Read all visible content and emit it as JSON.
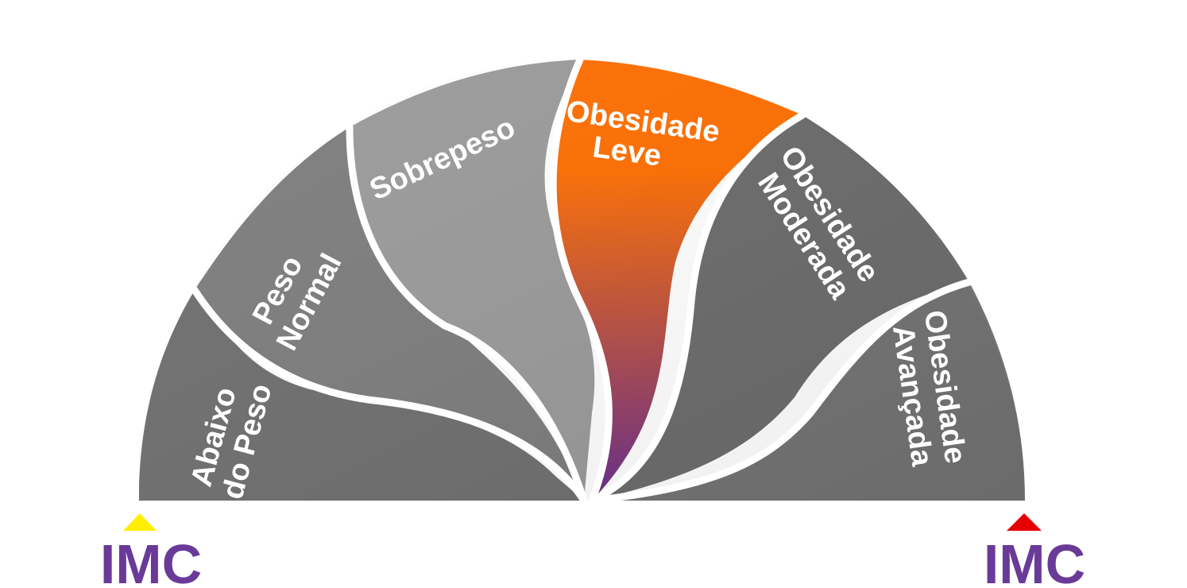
{
  "segments": [
    {
      "id": "abaixo",
      "lines": [
        "Abaixo",
        "do Peso"
      ],
      "color": "#6f6f6f",
      "highlight": false
    },
    {
      "id": "normal",
      "lines": [
        "Peso",
        "Normal"
      ],
      "color": "#7d7d7d",
      "highlight": false
    },
    {
      "id": "sobrepeso",
      "lines": [
        "Sobrepeso"
      ],
      "color": "#9a9a9a",
      "highlight": false
    },
    {
      "id": "leve",
      "lines": [
        "Obesidade",
        "Leve"
      ],
      "color": "#ff6e00",
      "color_end": "#6a2e8e",
      "highlight": true
    },
    {
      "id": "moderada",
      "lines": [
        "Obesidade",
        "Moderada"
      ],
      "color": "#6b6b6b",
      "highlight": false
    },
    {
      "id": "avancada",
      "lines": [
        "Obesidade",
        "Avançada"
      ],
      "color": "#737373",
      "highlight": false
    }
  ],
  "markers": [
    {
      "text": "IMC",
      "arrow_color": "#ffee00",
      "side": "left"
    },
    {
      "text": "IMC",
      "arrow_color": "#e60000",
      "side": "right"
    }
  ],
  "colors": {
    "imc_text": "#6a3a99",
    "separator": "#ffffff"
  }
}
